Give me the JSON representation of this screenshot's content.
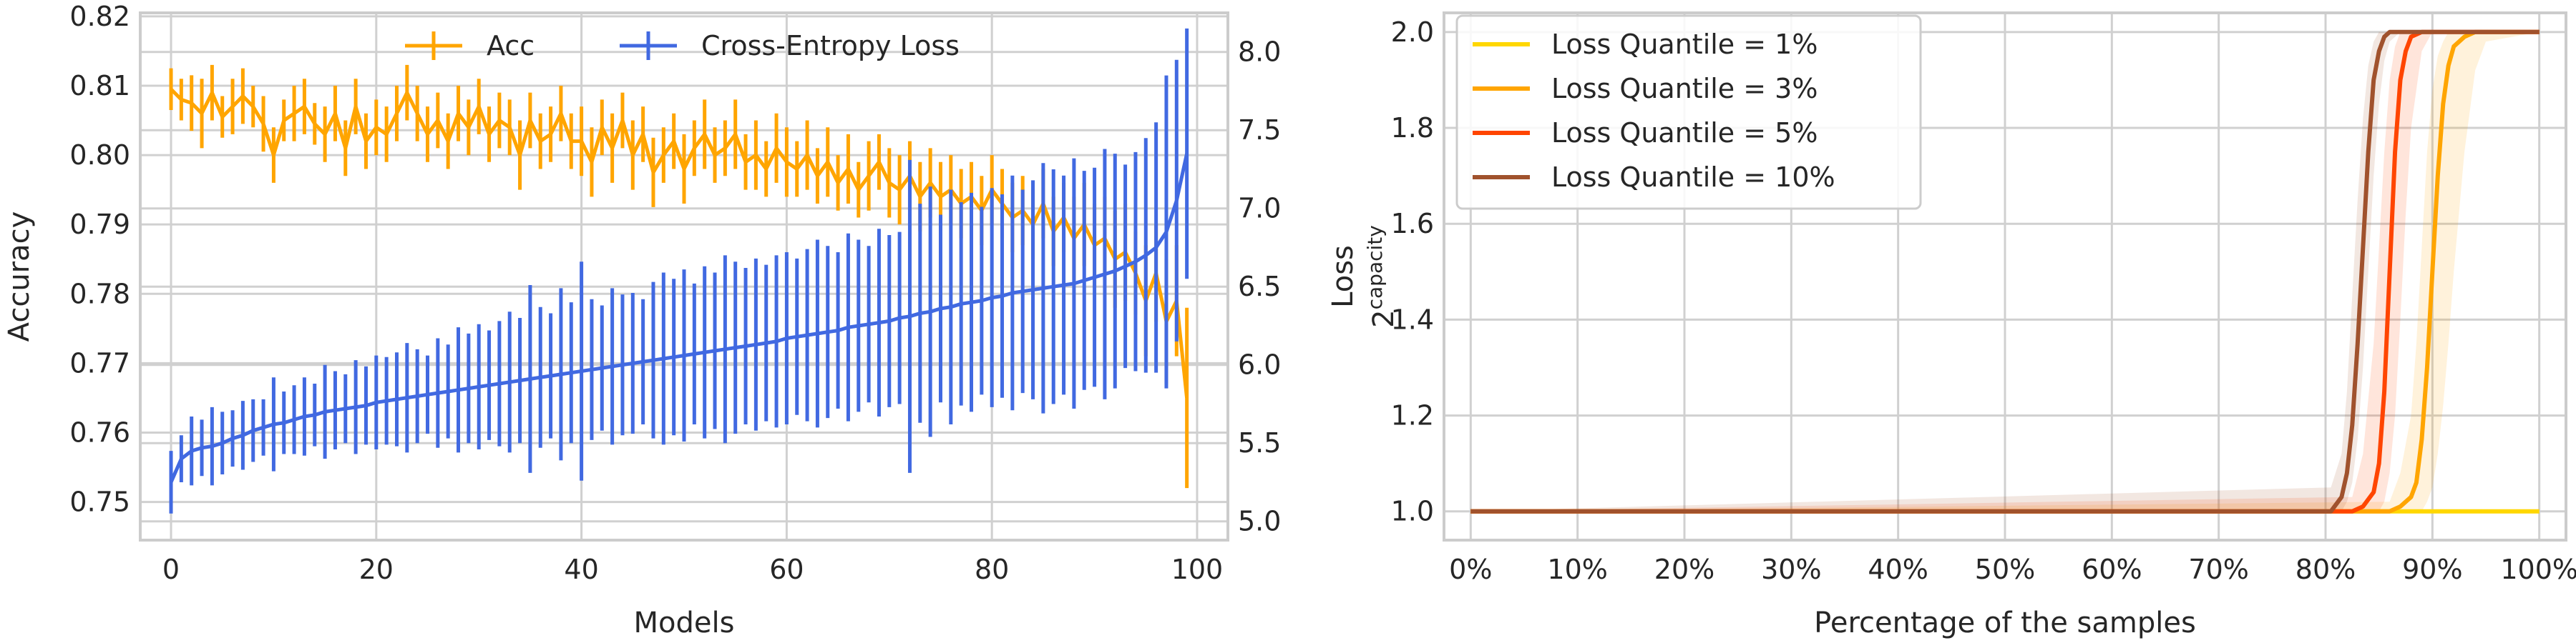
{
  "chart_data": [
    {
      "type": "line",
      "xlabel": "Models",
      "ylabel": "Accuracy",
      "y2label": "Loss",
      "xlim": [
        -3,
        103
      ],
      "ylim": [
        0.7445,
        0.8205
      ],
      "y2lim": [
        4.88,
        8.25
      ],
      "xticks": [
        0,
        20,
        40,
        60,
        80,
        100
      ],
      "yticks": [
        0.75,
        0.76,
        0.77,
        0.78,
        0.79,
        0.8,
        0.81,
        0.82
      ],
      "yticklabels": [
        "0.75",
        "0.76",
        "0.77",
        "0.78",
        "0.79",
        "0.80",
        "0.81",
        "0.82"
      ],
      "y2ticks": [
        5.0,
        5.5,
        6.0,
        6.5,
        7.0,
        7.5,
        8.0
      ],
      "y2ticklabels": [
        "5.0",
        "5.5",
        "6.0",
        "6.5",
        "7.0",
        "7.5",
        "8.0"
      ],
      "grid": true,
      "legend_position": "top-center",
      "series": [
        {
          "name": "Acc",
          "axis": "left",
          "color": "#ffa500",
          "x": [
            0,
            1,
            2,
            3,
            4,
            5,
            6,
            7,
            8,
            9,
            10,
            11,
            12,
            13,
            14,
            15,
            16,
            17,
            18,
            19,
            20,
            21,
            22,
            23,
            24,
            25,
            26,
            27,
            28,
            29,
            30,
            31,
            32,
            33,
            34,
            35,
            36,
            37,
            38,
            39,
            40,
            41,
            42,
            43,
            44,
            45,
            46,
            47,
            48,
            49,
            50,
            51,
            52,
            53,
            54,
            55,
            56,
            57,
            58,
            59,
            60,
            61,
            62,
            63,
            64,
            65,
            66,
            67,
            68,
            69,
            70,
            71,
            72,
            73,
            74,
            75,
            76,
            77,
            78,
            79,
            80,
            81,
            82,
            83,
            84,
            85,
            86,
            87,
            88,
            89,
            90,
            91,
            92,
            93,
            94,
            95,
            96,
            97,
            98,
            99
          ],
          "y": [
            0.8095,
            0.808,
            0.8075,
            0.806,
            0.809,
            0.8055,
            0.807,
            0.8085,
            0.807,
            0.8045,
            0.8,
            0.805,
            0.806,
            0.807,
            0.8045,
            0.803,
            0.806,
            0.801,
            0.807,
            0.802,
            0.804,
            0.803,
            0.806,
            0.809,
            0.806,
            0.803,
            0.805,
            0.802,
            0.806,
            0.804,
            0.807,
            0.803,
            0.805,
            0.804,
            0.8,
            0.805,
            0.802,
            0.803,
            0.806,
            0.802,
            0.802,
            0.799,
            0.804,
            0.801,
            0.805,
            0.8,
            0.803,
            0.7975,
            0.8,
            0.802,
            0.798,
            0.801,
            0.803,
            0.8,
            0.801,
            0.803,
            0.799,
            0.8,
            0.798,
            0.801,
            0.799,
            0.798,
            0.8,
            0.797,
            0.799,
            0.796,
            0.798,
            0.795,
            0.797,
            0.799,
            0.796,
            0.795,
            0.797,
            0.794,
            0.796,
            0.794,
            0.795,
            0.793,
            0.794,
            0.792,
            0.795,
            0.793,
            0.791,
            0.792,
            0.79,
            0.793,
            0.789,
            0.791,
            0.788,
            0.79,
            0.787,
            0.788,
            0.785,
            0.786,
            0.783,
            0.779,
            0.783,
            0.776,
            0.779,
            0.765
          ],
          "err": [
            0.003,
            0.003,
            0.004,
            0.005,
            0.004,
            0.003,
            0.004,
            0.004,
            0.003,
            0.004,
            0.004,
            0.003,
            0.004,
            0.004,
            0.003,
            0.004,
            0.004,
            0.004,
            0.004,
            0.004,
            0.004,
            0.004,
            0.004,
            0.004,
            0.004,
            0.004,
            0.004,
            0.004,
            0.004,
            0.004,
            0.004,
            0.004,
            0.004,
            0.004,
            0.005,
            0.004,
            0.004,
            0.004,
            0.004,
            0.004,
            0.005,
            0.005,
            0.004,
            0.005,
            0.004,
            0.005,
            0.004,
            0.005,
            0.004,
            0.004,
            0.005,
            0.004,
            0.005,
            0.004,
            0.004,
            0.005,
            0.004,
            0.005,
            0.004,
            0.005,
            0.005,
            0.004,
            0.005,
            0.004,
            0.005,
            0.004,
            0.005,
            0.004,
            0.005,
            0.004,
            0.005,
            0.005,
            0.005,
            0.005,
            0.005,
            0.005,
            0.005,
            0.005,
            0.005,
            0.005,
            0.005,
            0.005,
            0.005,
            0.005,
            0.005,
            0.005,
            0.005,
            0.005,
            0.006,
            0.006,
            0.006,
            0.006,
            0.007,
            0.007,
            0.006,
            0.008,
            0.007,
            0.009,
            0.008,
            0.013
          ]
        },
        {
          "name": "Cross-Entropy Loss",
          "axis": "right",
          "color": "#4169e1",
          "x": [
            0,
            1,
            2,
            3,
            4,
            5,
            6,
            7,
            8,
            9,
            10,
            11,
            12,
            13,
            14,
            15,
            16,
            17,
            18,
            19,
            20,
            21,
            22,
            23,
            24,
            25,
            26,
            27,
            28,
            29,
            30,
            31,
            32,
            33,
            34,
            35,
            36,
            37,
            38,
            39,
            40,
            41,
            42,
            43,
            44,
            45,
            46,
            47,
            48,
            49,
            50,
            51,
            52,
            53,
            54,
            55,
            56,
            57,
            58,
            59,
            60,
            61,
            62,
            63,
            64,
            65,
            66,
            67,
            68,
            69,
            70,
            71,
            72,
            73,
            74,
            75,
            76,
            77,
            78,
            79,
            80,
            81,
            82,
            83,
            84,
            85,
            86,
            87,
            88,
            89,
            90,
            91,
            92,
            93,
            94,
            95,
            96,
            97,
            98,
            99
          ],
          "y": [
            5.25,
            5.4,
            5.45,
            5.47,
            5.48,
            5.5,
            5.53,
            5.55,
            5.58,
            5.6,
            5.62,
            5.63,
            5.65,
            5.67,
            5.68,
            5.7,
            5.71,
            5.72,
            5.73,
            5.74,
            5.76,
            5.77,
            5.78,
            5.79,
            5.8,
            5.81,
            5.82,
            5.83,
            5.84,
            5.85,
            5.86,
            5.87,
            5.88,
            5.89,
            5.9,
            5.91,
            5.92,
            5.93,
            5.94,
            5.95,
            5.96,
            5.97,
            5.98,
            5.99,
            6.0,
            6.01,
            6.02,
            6.03,
            6.04,
            6.05,
            6.06,
            6.07,
            6.08,
            6.09,
            6.1,
            6.11,
            6.12,
            6.13,
            6.14,
            6.15,
            6.17,
            6.18,
            6.19,
            6.2,
            6.21,
            6.22,
            6.24,
            6.25,
            6.26,
            6.27,
            6.28,
            6.3,
            6.31,
            6.33,
            6.34,
            6.36,
            6.37,
            6.39,
            6.4,
            6.41,
            6.43,
            6.44,
            6.46,
            6.47,
            6.48,
            6.49,
            6.5,
            6.51,
            6.52,
            6.54,
            6.56,
            6.58,
            6.6,
            6.63,
            6.66,
            6.7,
            6.75,
            6.85,
            7.05,
            7.35
          ],
          "err": [
            0.2,
            0.15,
            0.22,
            0.18,
            0.25,
            0.2,
            0.18,
            0.22,
            0.2,
            0.18,
            0.3,
            0.2,
            0.22,
            0.25,
            0.2,
            0.3,
            0.25,
            0.22,
            0.3,
            0.25,
            0.3,
            0.28,
            0.3,
            0.35,
            0.3,
            0.25,
            0.35,
            0.3,
            0.4,
            0.35,
            0.4,
            0.35,
            0.4,
            0.45,
            0.4,
            0.6,
            0.45,
            0.4,
            0.55,
            0.45,
            0.7,
            0.45,
            0.4,
            0.5,
            0.45,
            0.45,
            0.4,
            0.5,
            0.55,
            0.5,
            0.55,
            0.45,
            0.55,
            0.5,
            0.6,
            0.55,
            0.5,
            0.55,
            0.5,
            0.55,
            0.55,
            0.5,
            0.55,
            0.6,
            0.55,
            0.5,
            0.6,
            0.55,
            0.5,
            0.6,
            0.55,
            0.55,
            1.0,
            0.7,
            0.8,
            0.6,
            0.75,
            0.65,
            0.7,
            0.6,
            0.7,
            0.65,
            0.75,
            0.65,
            0.7,
            0.8,
            0.75,
            0.7,
            0.8,
            0.7,
            0.7,
            0.8,
            0.75,
            0.65,
            0.7,
            0.75,
            0.8,
            1.0,
            0.9,
            0.8
          ]
        }
      ]
    },
    {
      "type": "line",
      "xlabel": "Percentage of the samples",
      "ylabel": "2^capacity",
      "ylabel_base": "2",
      "ylabel_exp": "capacity",
      "xlim": [
        -2.5,
        102.5
      ],
      "ylim": [
        0.94,
        2.04
      ],
      "xticks": [
        0,
        10,
        20,
        30,
        40,
        50,
        60,
        70,
        80,
        90,
        100
      ],
      "xticklabels": [
        "0%",
        "10%",
        "20%",
        "30%",
        "40%",
        "50%",
        "60%",
        "70%",
        "80%",
        "90%",
        "100%"
      ],
      "yticks": [
        1.0,
        1.2,
        1.4,
        1.6,
        1.8,
        2.0
      ],
      "yticklabels": [
        "1.0",
        "1.2",
        "1.4",
        "1.6",
        "1.8",
        "2.0"
      ],
      "grid": true,
      "legend_position": "top-left",
      "series": [
        {
          "name": "Loss Quantile = 1%",
          "color": "#ffd700",
          "x": [
            0,
            100
          ],
          "y": [
            1.0,
            1.0
          ]
        },
        {
          "name": "Loss Quantile = 3%",
          "color": "#ffa500",
          "x": [
            0,
            86.0,
            87.0,
            88.0,
            88.5,
            89.0,
            89.5,
            90.0,
            90.5,
            91.0,
            91.5,
            92.0,
            93.0,
            94.0,
            95.0,
            100
          ],
          "y": [
            1.0,
            1.0,
            1.01,
            1.03,
            1.06,
            1.15,
            1.3,
            1.5,
            1.7,
            1.85,
            1.93,
            1.97,
            1.99,
            2.0,
            2.0,
            2.0
          ],
          "band_low": [
            1.0,
            1.0,
            1.0,
            1.0,
            1.0,
            1.0,
            1.02,
            1.05,
            1.12,
            1.22,
            1.35,
            1.5,
            1.75,
            1.92,
            1.98,
            2.0
          ],
          "band_high": [
            1.0,
            1.02,
            1.08,
            1.2,
            1.35,
            1.55,
            1.75,
            1.88,
            1.95,
            1.98,
            2.0,
            2.0,
            2.0,
            2.0,
            2.0,
            2.0
          ]
        },
        {
          "name": "Loss Quantile = 5%",
          "color": "#ff4500",
          "x": [
            0,
            82.5,
            83.5,
            84.5,
            85.0,
            85.5,
            86.0,
            86.5,
            87.0,
            87.5,
            88.0,
            89.0,
            90.0,
            100
          ],
          "y": [
            1.0,
            1.0,
            1.01,
            1.04,
            1.1,
            1.25,
            1.5,
            1.75,
            1.9,
            1.96,
            1.99,
            2.0,
            2.0,
            2.0
          ],
          "band_low": [
            1.0,
            1.0,
            1.0,
            1.0,
            1.0,
            1.02,
            1.08,
            1.2,
            1.4,
            1.62,
            1.8,
            1.96,
            2.0,
            2.0
          ],
          "band_high": [
            1.0,
            1.03,
            1.12,
            1.35,
            1.55,
            1.75,
            1.9,
            1.97,
            2.0,
            2.0,
            2.0,
            2.0,
            2.0,
            2.0
          ]
        },
        {
          "name": "Loss Quantile = 10%",
          "color": "#a0522d",
          "x": [
            0,
            80.5,
            81.5,
            82.0,
            82.5,
            83.0,
            83.5,
            84.0,
            84.5,
            85.0,
            85.5,
            86.0,
            87.0,
            100
          ],
          "y": [
            1.0,
            1.0,
            1.03,
            1.08,
            1.18,
            1.35,
            1.55,
            1.75,
            1.9,
            1.96,
            1.99,
            2.0,
            2.0,
            2.0
          ],
          "band_low": [
            1.0,
            1.0,
            1.0,
            1.02,
            1.06,
            1.15,
            1.3,
            1.5,
            1.7,
            1.85,
            1.94,
            1.98,
            2.0,
            2.0
          ],
          "band_high": [
            1.0,
            1.05,
            1.12,
            1.25,
            1.45,
            1.65,
            1.82,
            1.93,
            1.98,
            2.0,
            2.0,
            2.0,
            2.0,
            2.0
          ]
        }
      ]
    }
  ]
}
